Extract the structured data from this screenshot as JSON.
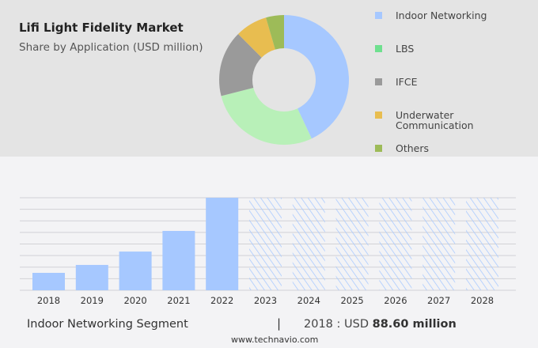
{
  "colors": {
    "indoor": "#a6c8ff",
    "lbs": "#b8f0b8",
    "lbs_legend": "#6fe08f",
    "ifce": "#9a9a9a",
    "underwater": "#e8bd50",
    "others": "#9dbb58",
    "bar": "#a6c8ff"
  },
  "chart_data": [
    {
      "type": "pie",
      "donut": true,
      "title": "Lifi Light Fidelity Market",
      "subtitle": "Share by Application (USD million)",
      "legend_placement": "right",
      "slices": [
        {
          "label": "Indoor Networking",
          "value": 43,
          "color_key": "indoor"
        },
        {
          "label": "LBS",
          "value": 28,
          "color_key": "lbs"
        },
        {
          "label": "IFCE",
          "value": 16.5,
          "color_key": "ifce"
        },
        {
          "label": "Underwater Communication",
          "value": 8,
          "color_key": "underwater"
        },
        {
          "label": "Others",
          "value": 4.5,
          "color_key": "others"
        }
      ]
    },
    {
      "type": "bar",
      "categories": [
        "2018",
        "2019",
        "2020",
        "2021",
        "2022",
        "2023",
        "2024",
        "2025",
        "2026",
        "2027",
        "2028"
      ],
      "values": [
        88.6,
        129,
        197,
        302,
        471,
        null,
        null,
        null,
        null,
        null,
        null
      ],
      "forecast_from": "2023",
      "grid": true,
      "ylim": [
        0,
        471
      ]
    }
  ],
  "footer": {
    "segment": "Indoor Networking Segment",
    "separator": "|",
    "year_label": "2018 : USD",
    "value": "88.60 million",
    "url": "www.technavio.com"
  }
}
